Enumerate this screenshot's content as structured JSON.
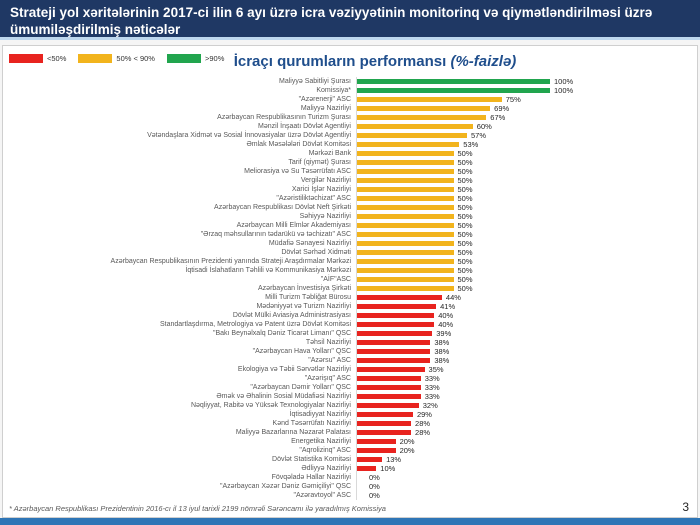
{
  "header": {
    "title": "Strateji yol xəritələrinin 2017-ci ilin 6 ayı üzrə icra vəziyyətinin monitorinq və qiymətləndirilməsi üzrə ümumiləşdirilmiş nəticələr"
  },
  "legend": {
    "items": [
      {
        "label": "<50%",
        "key": "red"
      },
      {
        "label": "50% < 90%",
        "key": "yellow"
      },
      {
        "label": ">90%",
        "key": "green"
      }
    ]
  },
  "chart": {
    "title": "İcraçı qurumların performansı",
    "title_suffix": "(%-faizlə)"
  },
  "chart_data": {
    "type": "bar",
    "orientation": "horizontal",
    "title": "İcraçı qurumların performansı (%-faizlə)",
    "xlim": [
      0,
      100
    ],
    "unit": "%",
    "thresholds": {
      "green_min": 90,
      "yellow_min": 50
    },
    "categories": [
      "Maliyyə Sabitliyi Şurası",
      "Komissiya*",
      "\"Azərenerji\" ASC",
      "Maliyyə Nazirliyi",
      "Azərbaycan Respublikasının Turizm Şurası",
      "Mənzil İnşaatı Dövlət Agentliyi",
      "Vətəndaşlara Xidmət və Sosial İnnovasiyalar üzrə Dövlət Agentliyi",
      "Əmlak Məsələləri Dövlət Komitəsi",
      "Mərkəzi Bank",
      "Tarif (qiymət) Şurası",
      "Meliorasiya və Su Təsərrüfatı ASC",
      "Vergilər Nazirliyi",
      "Xarici İşlər Nazirliyi",
      "\"Azəristiliktəchizat\" ASC",
      "Azərbaycan Respublikası Dövlət Neft Şirkəti",
      "Səhiyyə Nazirliyi",
      "Azərbaycan Milli Elmlər Akademiyası",
      "\"Ərzaq məhsullarının tədarükü və təchizatı\" ASC",
      "Müdafiə Sənayesi Nazirliyi",
      "Dövlət Sərhəd Xidməti",
      "Azərbaycan Respublikasının Prezidenti yanında Strateji Araşdırmalar Mərkəzi",
      "İqtisadi İslahatların Təhlili və Kommunikasiya Mərkəzi",
      "\"AİF\"ASC",
      "Azərbaycan İnvestisiya Şirkəti",
      "Milli Turizm Təbliğat Bürosu",
      "Mədəniyyət və Turizm Nazirliyi",
      "Dövlət Mülki Aviasiya Administrasiyası",
      "Standartlaşdırma, Metrologiya və Patent üzrə Dövlət Komitəsi",
      "\"Bakı Beynəlxalq Dəniz Ticarət Limanı\" QSC",
      "Təhsil Nazirliyi",
      "\"Azərbaycan Hava Yolları\" QSC",
      "\"Azərsu\" ASC",
      "Ekologiya və Təbii Sərvətlər Nazirliyi",
      "\"Azərişıq\" ASC",
      "\"Azərbaycan Dəmir Yolları\" QSC",
      "Əmək və Əhalinin Sosial Müdafiəsi Nazirliyi",
      "Nəqliyyat, Rabitə və Yüksək Texnologiyalar Nazirliyi",
      "İqtisadiyyat Nazirliyi",
      "Kənd Təsərrüfatı Nazirliyi",
      "Maliyyə Bazarlarına Nəzarət Palatası",
      "Energetika Nazirliyi",
      "\"Aqrolizinq\" ASC",
      "Dövlət Statistika Komitəsi",
      "Ədliyyə Nazirliyi",
      "Fövqəladə Hallar Nazirliyi",
      "\"Azərbaycan Xəzər Dəniz Gəmiçiliyi\" QSC",
      "\"Azəravtoyol\" ASC"
    ],
    "values": [
      100,
      100,
      75,
      69,
      67,
      60,
      57,
      53,
      50,
      50,
      50,
      50,
      50,
      50,
      50,
      50,
      50,
      50,
      50,
      50,
      50,
      50,
      50,
      50,
      44,
      41,
      40,
      40,
      39,
      38,
      38,
      38,
      35,
      33,
      33,
      33,
      32,
      29,
      28,
      28,
      20,
      20,
      13,
      10,
      0,
      0,
      0
    ]
  },
  "footnote": "* Azərbaycan Respublikası Prezidentinin 2016-cı il 13 iyul tarixli 2199 nömrəli Sərəncamı ilə yaradılmış Komissiya",
  "page_number": "3",
  "colors": {
    "red": "#e8231f",
    "yellow": "#f2b41d",
    "green": "#21a54e",
    "header_bg": "#1f3864",
    "title_blue": "#1f4e8c",
    "bottom_bar": "#2e75b6"
  }
}
